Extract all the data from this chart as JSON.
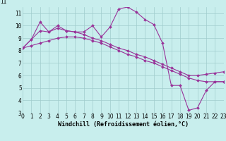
{
  "xlabel": "Windchill (Refroidissement éolien,°C)",
  "bg_color": "#c8eeed",
  "line_color": "#993399",
  "xlim": [
    0,
    23
  ],
  "ylim": [
    3,
    11.5
  ],
  "yticks": [
    3,
    4,
    5,
    6,
    7,
    8,
    9,
    10,
    11
  ],
  "xticks": [
    0,
    1,
    2,
    3,
    4,
    5,
    6,
    7,
    8,
    9,
    10,
    11,
    12,
    13,
    14,
    15,
    16,
    17,
    18,
    19,
    20,
    21,
    22,
    23
  ],
  "line1_x": [
    0,
    1,
    2,
    3,
    4,
    5,
    6,
    7,
    8,
    9,
    10,
    11,
    12,
    13,
    14,
    15,
    16,
    17,
    18,
    19,
    20,
    21,
    22,
    23
  ],
  "line1_y": [
    8.2,
    8.9,
    10.3,
    9.5,
    10.0,
    9.6,
    9.5,
    9.5,
    10.0,
    9.1,
    9.9,
    11.35,
    11.5,
    11.1,
    10.5,
    10.1,
    8.6,
    5.2,
    5.2,
    3.2,
    3.4,
    4.8,
    5.5,
    5.5
  ],
  "line2_x": [
    0,
    1,
    2,
    3,
    4,
    5,
    6,
    7,
    8,
    9,
    10,
    11,
    12,
    13,
    14,
    15,
    16,
    17,
    18,
    19,
    20,
    21,
    22,
    23
  ],
  "line2_y": [
    8.2,
    8.9,
    9.6,
    9.5,
    9.8,
    9.6,
    9.5,
    9.3,
    9.0,
    8.8,
    8.5,
    8.2,
    8.0,
    7.7,
    7.5,
    7.2,
    6.9,
    6.6,
    6.3,
    6.0,
    6.0,
    6.1,
    6.2,
    6.3
  ],
  "line3_x": [
    0,
    1,
    2,
    3,
    4,
    5,
    6,
    7,
    8,
    9,
    10,
    11,
    12,
    13,
    14,
    15,
    16,
    17,
    18,
    19,
    20,
    21,
    22,
    23
  ],
  "line3_y": [
    8.2,
    8.4,
    8.6,
    8.8,
    9.0,
    9.1,
    9.1,
    9.0,
    8.8,
    8.6,
    8.3,
    8.0,
    7.7,
    7.5,
    7.2,
    7.0,
    6.7,
    6.4,
    6.1,
    5.8,
    5.6,
    5.5,
    5.5,
    5.5
  ],
  "ylabel_outside": "11",
  "tick_fontsize": 5.5,
  "xlabel_fontsize": 6.0
}
